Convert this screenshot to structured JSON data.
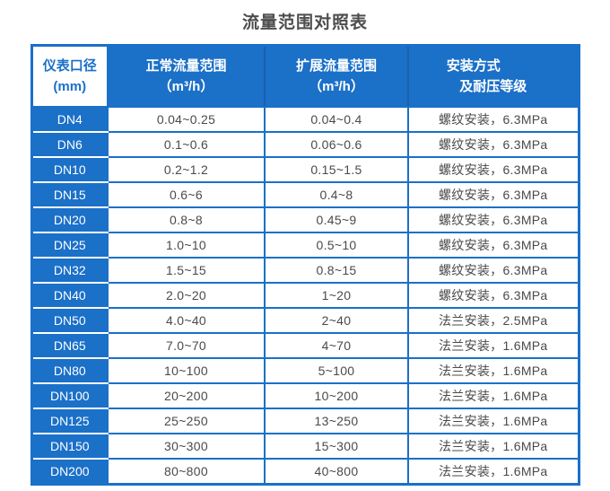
{
  "page": {
    "title": "流量范围对照表"
  },
  "colors": {
    "primary_blue": "#1b70c8",
    "header_divider_blue": "#1563b0",
    "data_text": "#4a4a4a",
    "title_text": "#4d4d4d",
    "inverse_text": "#ffffff"
  },
  "table": {
    "header": {
      "col1_line1": "仪表口径",
      "col1_line2": "(mm)",
      "col2_line1": "正常流量范围",
      "col2_line2": "（m³/h）",
      "col3_line1": "扩展流量范围",
      "col3_line2": "（m³/h）",
      "col4_line1": "安装方式",
      "col4_line2": "及耐压等级"
    },
    "rows": [
      {
        "dn": "DN4",
        "normal": "0.04~0.25",
        "extended": "0.04~0.4",
        "install": "螺纹安装，6.3MPa"
      },
      {
        "dn": "DN6",
        "normal": "0.1~0.6",
        "extended": "0.06~0.6",
        "install": "螺纹安装，6.3MPa"
      },
      {
        "dn": "DN10",
        "normal": "0.2~1.2",
        "extended": "0.15~1.5",
        "install": "螺纹安装，6.3MPa"
      },
      {
        "dn": "DN15",
        "normal": "0.6~6",
        "extended": "0.4~8",
        "install": "螺纹安装，6.3MPa"
      },
      {
        "dn": "DN20",
        "normal": "0.8~8",
        "extended": "0.45~9",
        "install": "螺纹安装，6.3MPa"
      },
      {
        "dn": "DN25",
        "normal": "1.0~10",
        "extended": "0.5~10",
        "install": "螺纹安装，6.3MPa"
      },
      {
        "dn": "DN32",
        "normal": "1.5~15",
        "extended": "0.8~15",
        "install": "螺纹安装，6.3MPa"
      },
      {
        "dn": "DN40",
        "normal": "2.0~20",
        "extended": "1~20",
        "install": "螺纹安装，6.3MPa"
      },
      {
        "dn": "DN50",
        "normal": "4.0~40",
        "extended": "2~40",
        "install": "法兰安装，2.5MPa"
      },
      {
        "dn": "DN65",
        "normal": "7.0~70",
        "extended": "4~70",
        "install": "法兰安装，1.6MPa"
      },
      {
        "dn": "DN80",
        "normal": "10~100",
        "extended": "5~100",
        "install": "法兰安装，1.6MPa"
      },
      {
        "dn": "DN100",
        "normal": "20~200",
        "extended": "10~200",
        "install": "法兰安装，1.6MPa"
      },
      {
        "dn": "DN125",
        "normal": "25~250",
        "extended": "13~250",
        "install": "法兰安装，1.6MPa"
      },
      {
        "dn": "DN150",
        "normal": "30~300",
        "extended": "15~300",
        "install": "法兰安装，1.6MPa"
      },
      {
        "dn": "DN200",
        "normal": "80~800",
        "extended": "40~800",
        "install": "法兰安装，1.6MPa"
      }
    ]
  }
}
